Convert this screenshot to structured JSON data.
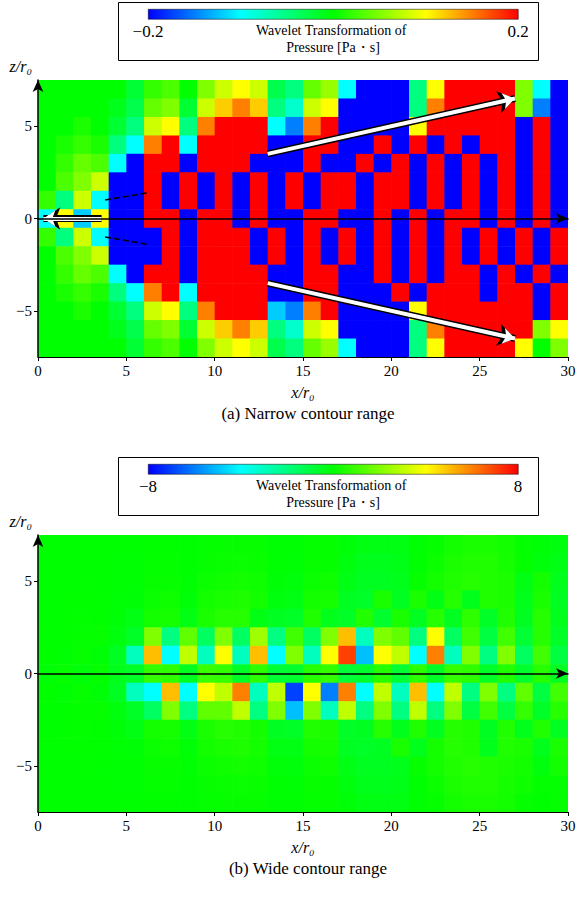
{
  "chart_data": {
    "type": "heatmap",
    "x_label": "x/r₀",
    "y_label": "z/r₀",
    "xlim": [
      0,
      30
    ],
    "ylim": [
      -7.5,
      7.5
    ],
    "xticks": [
      0,
      5,
      10,
      15,
      20,
      25,
      30
    ],
    "yticks": [
      {
        "value": -5,
        "label": "−5"
      },
      0,
      5
    ],
    "x": [
      0.5,
      1.5,
      2.5,
      3.5,
      4.5,
      5.5,
      6.5,
      7.5,
      8.5,
      9.5,
      10.5,
      11.5,
      12.5,
      13.5,
      14.5,
      15.5,
      16.5,
      17.5,
      18.5,
      19.5,
      20.5,
      21.5,
      22.5,
      23.5,
      24.5,
      25.5,
      26.5,
      27.5,
      28.5,
      29.5
    ],
    "z": [
      7,
      6,
      5,
      4,
      3,
      2,
      1,
      0,
      -1,
      -2,
      -3,
      -4,
      -5,
      -6,
      -7
    ],
    "values": [
      [
        0,
        0,
        0,
        0,
        0,
        -0.02,
        0.02,
        0.03,
        0,
        0.05,
        0.08,
        0.1,
        0.08,
        -0.03,
        -0.05,
        0.04,
        0.06,
        -0.1,
        -0.25,
        -0.3,
        -0.25,
        -0.05,
        0.1,
        0.3,
        0.4,
        0.4,
        0.3,
        0.05,
        -0.1,
        -0.2
      ],
      [
        0,
        0,
        0,
        0,
        -0.01,
        -0.03,
        0.04,
        0.05,
        -0.02,
        0.08,
        0.12,
        0.15,
        0.12,
        -0.05,
        -0.08,
        0.08,
        0.1,
        -0.2,
        -0.4,
        -0.45,
        -0.35,
        -0.05,
        0.15,
        0.4,
        0.5,
        0.5,
        0.35,
        0.05,
        -0.15,
        -0.3
      ],
      [
        0,
        0,
        0.01,
        0,
        -0.02,
        -0.05,
        0.08,
        0.1,
        -0.05,
        0.15,
        0.25,
        0.3,
        0.2,
        -0.1,
        -0.15,
        0.15,
        0.2,
        -0.3,
        -0.5,
        -0.5,
        -0.4,
        0.1,
        0.3,
        0.5,
        0.6,
        0.5,
        0.4,
        -0.3,
        0.3,
        -0.4
      ],
      [
        0,
        0.01,
        0.02,
        0.01,
        -0.05,
        -0.1,
        0.15,
        0.2,
        -0.1,
        0.3,
        0.4,
        0.45,
        0.3,
        -0.2,
        -0.3,
        0.3,
        0.35,
        -0.5,
        -0.6,
        0.4,
        -0.5,
        0.4,
        -0.3,
        0.6,
        -0.4,
        0.5,
        0.4,
        -0.4,
        0.4,
        -0.5
      ],
      [
        0,
        0.02,
        0.04,
        0.03,
        -0.1,
        -0.3,
        0.3,
        0.35,
        -0.3,
        0.4,
        0.6,
        0.6,
        -0.3,
        -0.5,
        -0.6,
        0.5,
        -0.4,
        -0.6,
        0.5,
        -0.7,
        0.4,
        -0.5,
        0.6,
        -0.5,
        0.7,
        -0.6,
        0.5,
        -0.5,
        0.6,
        -0.4
      ],
      [
        0,
        0.03,
        0.05,
        0.08,
        -0.2,
        -0.6,
        2,
        -2,
        1.5,
        -1.5,
        2,
        -1.5,
        2.5,
        -2,
        1,
        -1.5,
        2,
        5,
        -3,
        2,
        1.5,
        -2,
        4,
        -1.5,
        1,
        -1,
        1,
        -0.8,
        0.6,
        -0.6
      ],
      [
        0.02,
        -0.05,
        0.08,
        -0.1,
        -0.5,
        -3,
        5,
        -4,
        3,
        -3,
        4,
        -3,
        5,
        -4,
        2,
        -3,
        4,
        7,
        -5,
        4,
        3,
        -4,
        6,
        -3,
        2,
        -2,
        2,
        -1.5,
        1,
        -1
      ],
      [
        -0.1,
        0.1,
        -0.12,
        0.1,
        -0.4,
        -0.6,
        0.8,
        0.7,
        -0.5,
        0.9,
        0.8,
        -0.6,
        0.7,
        -0.8,
        -0.7,
        0.6,
        0.8,
        -0.9,
        -0.7,
        0.6,
        -0.8,
        0.7,
        -0.6,
        0.8,
        0.7,
        -0.6,
        0.5,
        -0.7,
        0.6,
        -0.5
      ],
      [
        0.02,
        -0.05,
        0.08,
        -0.1,
        -0.5,
        -3,
        -4,
        5,
        -4,
        4,
        3,
        6,
        -3,
        3,
        -7,
        4,
        -6,
        6,
        -4,
        3,
        -3,
        5,
        -4,
        3,
        -2,
        2,
        -2,
        1.5,
        -1,
        1
      ],
      [
        0,
        0.03,
        0.05,
        0.08,
        -0.2,
        -0.6,
        -1.5,
        2,
        -2,
        1.5,
        1.5,
        3,
        -2,
        2,
        -5,
        2,
        -3,
        3,
        -2,
        2,
        -2,
        3,
        -2,
        2,
        -1,
        1,
        -1,
        0.8,
        -0.6,
        0.6
      ],
      [
        0,
        0.02,
        0.04,
        0.03,
        -0.1,
        -0.3,
        0.3,
        0.35,
        -0.3,
        0.4,
        0.6,
        0.5,
        0.3,
        -0.5,
        -0.6,
        0.5,
        0.4,
        -0.6,
        -0.5,
        0.6,
        -0.4,
        0.5,
        -0.5,
        0.6,
        0.5,
        -0.5,
        0.5,
        -0.4,
        0.5,
        -0.5
      ],
      [
        0,
        0.01,
        0.02,
        0.01,
        -0.05,
        -0.1,
        0.15,
        0.2,
        -0.1,
        0.3,
        0.4,
        0.45,
        0.3,
        -0.25,
        -0.3,
        0.3,
        0.35,
        -0.5,
        -0.6,
        -0.5,
        0.4,
        -0.4,
        0.3,
        0.6,
        0.5,
        -0.4,
        0.5,
        0.4,
        -0.4,
        0.4
      ],
      [
        0,
        0,
        0.01,
        0,
        -0.02,
        -0.05,
        0.08,
        0.1,
        -0.05,
        0.15,
        0.25,
        0.3,
        0.2,
        -0.12,
        -0.15,
        0.15,
        0.2,
        -0.3,
        -0.5,
        -0.5,
        -0.4,
        0.1,
        0.3,
        0.5,
        0.6,
        0.5,
        0.4,
        0.3,
        -0.2,
        0.3
      ],
      [
        0,
        0,
        0,
        0,
        -0.01,
        -0.03,
        0.04,
        0.05,
        -0.02,
        0.08,
        0.12,
        0.15,
        0.12,
        -0.05,
        -0.08,
        0.08,
        0.1,
        -0.2,
        -0.4,
        -0.45,
        -0.35,
        -0.05,
        0.15,
        0.4,
        0.5,
        0.5,
        0.35,
        0.2,
        0.05,
        0.1
      ],
      [
        0,
        0,
        0,
        0,
        0,
        -0.02,
        0.02,
        0.03,
        0,
        0.05,
        0.08,
        0.1,
        0.08,
        -0.03,
        -0.05,
        0.04,
        0.06,
        -0.1,
        -0.25,
        -0.3,
        -0.25,
        -0.05,
        0.1,
        0.3,
        0.4,
        0.4,
        0.3,
        0.1,
        0,
        0.05
      ]
    ],
    "panels": [
      {
        "title": "(a) Narrow contour range",
        "colorbar": {
          "label": "Wavelet Transformation of Pressure [Pa・s]",
          "range": [
            -0.2,
            0.2
          ],
          "ticks": [
            {
              "value": -0.2,
              "label": "−0.2"
            },
            0.2
          ]
        },
        "annotations": [
          {
            "type": "arrow",
            "x": [
              13,
              27
            ],
            "z": [
              3.5,
              6.5
            ]
          },
          {
            "type": "arrow",
            "x": [
              13,
              27
            ],
            "z": [
              -3.5,
              -6.5
            ]
          },
          {
            "type": "arrow",
            "x": [
              3.6,
              0.3
            ],
            "z": [
              0,
              0
            ]
          },
          {
            "type": "line",
            "line_style": "dashed",
            "x": [
              3.8,
              6.3
            ],
            "z": [
              1.0,
              1.4
            ]
          },
          {
            "type": "line",
            "line_style": "dashed",
            "x": [
              3.8,
              6.3
            ],
            "z": [
              -1.0,
              -1.4
            ]
          }
        ]
      },
      {
        "title": "(b) Wide contour range",
        "colorbar": {
          "label": "Wavelet Transformation of Pressure [Pa・s]",
          "range": [
            -8,
            8
          ],
          "ticks": [
            {
              "value": -8,
              "label": "−8"
            },
            8
          ]
        },
        "annotations": []
      }
    ]
  }
}
